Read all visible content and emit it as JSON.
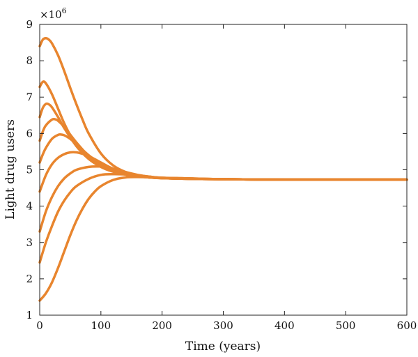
{
  "chart_data": {
    "type": "line",
    "title": "",
    "xlabel": "Time (years)",
    "ylabel": "Light drug users",
    "y_multiplier_label": "×10",
    "y_multiplier_exponent": "6",
    "xlim": [
      0,
      600
    ],
    "ylim": [
      1,
      9
    ],
    "xticks": [
      0,
      100,
      200,
      300,
      400,
      500,
      600
    ],
    "yticks": [
      1,
      2,
      3,
      4,
      5,
      6,
      7,
      8,
      9
    ],
    "grid": false,
    "line_color": "#E8852E",
    "series": [
      {
        "x": [
          0,
          5,
          10,
          15,
          20,
          30,
          40,
          50,
          60,
          70,
          80,
          100,
          120,
          140,
          160,
          180,
          200,
          250,
          300,
          400,
          500,
          600
        ],
        "y": [
          8.4,
          8.58,
          8.62,
          8.58,
          8.48,
          8.15,
          7.72,
          7.25,
          6.8,
          6.38,
          6.0,
          5.45,
          5.12,
          4.94,
          4.84,
          4.79,
          4.77,
          4.75,
          4.74,
          4.73,
          4.73,
          4.73
        ]
      },
      {
        "x": [
          0,
          5,
          10,
          20,
          30,
          40,
          50,
          60,
          80,
          100,
          120,
          150,
          180,
          200,
          250,
          300,
          400,
          500,
          600
        ],
        "y": [
          7.28,
          7.42,
          7.38,
          7.08,
          6.68,
          6.28,
          5.95,
          5.7,
          5.32,
          5.08,
          4.95,
          4.84,
          4.79,
          4.77,
          4.75,
          4.74,
          4.73,
          4.73,
          4.73
        ]
      },
      {
        "x": [
          0,
          5,
          10,
          15,
          20,
          30,
          40,
          60,
          80,
          100,
          120,
          150,
          180,
          200,
          250,
          300,
          400,
          500,
          600
        ],
        "y": [
          6.45,
          6.7,
          6.81,
          6.8,
          6.72,
          6.45,
          6.15,
          5.65,
          5.3,
          5.08,
          4.95,
          4.84,
          4.79,
          4.77,
          4.75,
          4.74,
          4.73,
          4.73,
          4.73
        ]
      },
      {
        "x": [
          0,
          5,
          10,
          20,
          25,
          30,
          40,
          60,
          80,
          100,
          120,
          150,
          180,
          200,
          250,
          300,
          400,
          500,
          600
        ],
        "y": [
          5.8,
          6.05,
          6.22,
          6.38,
          6.39,
          6.35,
          6.18,
          5.75,
          5.38,
          5.12,
          4.96,
          4.84,
          4.79,
          4.77,
          4.75,
          4.74,
          4.73,
          4.73,
          4.73
        ]
      },
      {
        "x": [
          0,
          5,
          10,
          20,
          30,
          35,
          40,
          50,
          60,
          80,
          100,
          120,
          150,
          180,
          200,
          250,
          300,
          400,
          500,
          600
        ],
        "y": [
          5.2,
          5.42,
          5.6,
          5.85,
          5.96,
          5.97,
          5.95,
          5.85,
          5.7,
          5.4,
          5.15,
          4.98,
          4.85,
          4.8,
          4.77,
          4.75,
          4.74,
          4.73,
          4.73,
          4.73
        ]
      },
      {
        "x": [
          0,
          10,
          20,
          30,
          40,
          50,
          60,
          70,
          80,
          100,
          120,
          150,
          180,
          200,
          250,
          300,
          400,
          500,
          600
        ],
        "y": [
          4.4,
          4.85,
          5.15,
          5.33,
          5.43,
          5.48,
          5.48,
          5.44,
          5.38,
          5.2,
          5.03,
          4.88,
          4.81,
          4.78,
          4.76,
          4.74,
          4.73,
          4.73,
          4.73
        ]
      },
      {
        "x": [
          0,
          10,
          20,
          30,
          40,
          50,
          60,
          80,
          100,
          110,
          120,
          140,
          160,
          180,
          200,
          250,
          300,
          400,
          500,
          600
        ],
        "y": [
          3.3,
          3.85,
          4.25,
          4.55,
          4.76,
          4.9,
          5.0,
          5.08,
          5.09,
          5.07,
          5.03,
          4.94,
          4.86,
          4.81,
          4.78,
          4.76,
          4.74,
          4.73,
          4.73,
          4.73
        ]
      },
      {
        "x": [
          0,
          10,
          20,
          30,
          40,
          50,
          60,
          80,
          100,
          120,
          140,
          160,
          180,
          200,
          250,
          300,
          400,
          500,
          600
        ],
        "y": [
          2.45,
          3.0,
          3.45,
          3.85,
          4.15,
          4.38,
          4.55,
          4.75,
          4.86,
          4.88,
          4.87,
          4.84,
          4.8,
          4.78,
          4.76,
          4.74,
          4.73,
          4.73,
          4.73
        ]
      },
      {
        "x": [
          0,
          10,
          20,
          30,
          40,
          50,
          60,
          70,
          80,
          90,
          100,
          120,
          140,
          160,
          180,
          200,
          250,
          300,
          400,
          500,
          600
        ],
        "y": [
          1.4,
          1.6,
          1.9,
          2.3,
          2.75,
          3.2,
          3.6,
          3.93,
          4.2,
          4.4,
          4.55,
          4.72,
          4.79,
          4.8,
          4.79,
          4.77,
          4.75,
          4.74,
          4.73,
          4.73,
          4.73
        ]
      }
    ]
  }
}
